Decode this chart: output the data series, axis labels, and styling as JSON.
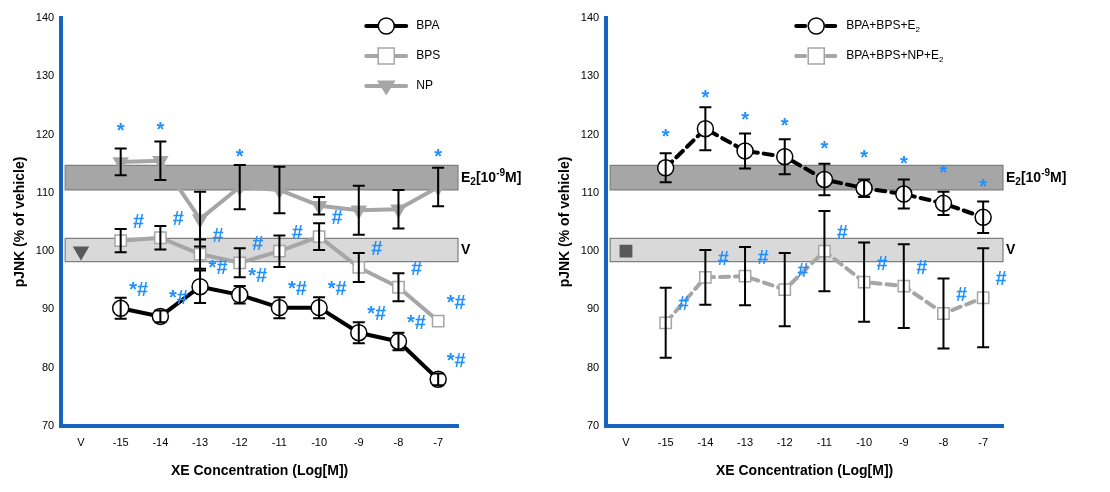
{
  "chart_data": [
    {
      "type": "line",
      "categories": [
        "V",
        "-15",
        "-14",
        "-13",
        "-12",
        "-11",
        "-10",
        "-9",
        "-8",
        "-7"
      ],
      "xlabel": "XE Concentration (Log[M])",
      "ylabel": "pJNK (% of vehicle)",
      "ylim": [
        70,
        140
      ],
      "yticks": [
        70,
        80,
        90,
        100,
        110,
        120,
        130,
        140
      ],
      "grid": false,
      "legend": "top right",
      "series": [
        {
          "name": "BPA",
          "color": "#000000",
          "marker": "circle",
          "line_style": "solid",
          "values": [
            null,
            90.2,
            88.8,
            93.9,
            92.5,
            90.3,
            90.3,
            86,
            84.5,
            78
          ],
          "errors": [
            null,
            1.8,
            1,
            2.8,
            1.5,
            1.8,
            1.8,
            1.8,
            1.5,
            1
          ]
        },
        {
          "name": "BPS",
          "color": "#a6a6a6",
          "marker": "square",
          "line_style": "solid",
          "values": [
            null,
            101.8,
            102.3,
            99.5,
            98,
            100,
            102.5,
            97.2,
            93.8,
            88
          ],
          "errors": [
            null,
            2,
            2,
            2.5,
            2.5,
            2.7,
            2.3,
            2.5,
            2.4,
            null
          ]
        },
        {
          "name": "NP",
          "color": "#a6a6a6",
          "marker": "triangle",
          "line_style": "solid",
          "values": [
            null,
            115.3,
            115.5,
            105.5,
            111,
            110.5,
            107.8,
            107,
            107.2,
            111
          ],
          "errors": [
            null,
            2.3,
            3.3,
            4.7,
            3.8,
            4,
            1.5,
            4.2,
            3.3,
            3.3
          ]
        },
        {
          "type": "scatter",
          "color": "#595959",
          "marker": "triangle",
          "x": [
            "V"
          ],
          "values": [
            100
          ]
        }
      ],
      "bands": [
        {
          "axis": "y",
          "from": 110.5,
          "to": 114.7,
          "label": "E$_{2}$[10$^{-9}$M]",
          "color": "#a6a6a6"
        },
        {
          "axis": "y",
          "from": 98.2,
          "to": 102.2,
          "label": "V",
          "color": "#d9d9d9"
        }
      ],
      "annotations": [
        {
          "text": "*",
          "x": "-15",
          "y": 115.3
        },
        {
          "text": "*",
          "x": "-14",
          "y": 115.5
        },
        {
          "text": "*",
          "x": "-12",
          "y": 111
        },
        {
          "text": "*",
          "x": "-7",
          "y": 111
        },
        {
          "text": "#",
          "x": "-15",
          "y": 101.8
        },
        {
          "text": "#",
          "x": "-14",
          "y": 102.3
        },
        {
          "text": "#",
          "x": "-13",
          "y": 99.5
        },
        {
          "text": "#",
          "x": "-12",
          "y": 98
        },
        {
          "text": "#",
          "x": "-11",
          "y": 100
        },
        {
          "text": "#",
          "x": "-10",
          "y": 102.5
        },
        {
          "text": "#",
          "x": "-9",
          "y": 97.2
        },
        {
          "text": "#",
          "x": "-8",
          "y": 93.8
        },
        {
          "text": "*#",
          "x": "-7",
          "y": 88
        },
        {
          "text": "*#",
          "x": "-15",
          "y": 90.2
        },
        {
          "text": "*#",
          "x": "-14",
          "y": 88.8
        },
        {
          "text": "*#",
          "x": "-13",
          "y": 93.9
        },
        {
          "text": "*#",
          "x": "-12",
          "y": 92.5
        },
        {
          "text": "*#",
          "x": "-11",
          "y": 90.3
        },
        {
          "text": "*#",
          "x": "-10",
          "y": 90.3
        },
        {
          "text": "*#",
          "x": "-9",
          "y": 86
        },
        {
          "text": "*#",
          "x": "-8",
          "y": 84.5
        },
        {
          "text": "*#",
          "x": "-7",
          "y": 78
        }
      ]
    },
    {
      "type": "line",
      "categories": [
        "V",
        "-15",
        "-14",
        "-13",
        "-12",
        "-11",
        "-10",
        "-9",
        "-8",
        "-7"
      ],
      "xlabel": "XE Concentration (Log[M])",
      "ylabel": "pJNK (% of vehicle)",
      "ylim": [
        70,
        140
      ],
      "yticks": [
        70,
        80,
        90,
        100,
        110,
        120,
        130,
        140
      ],
      "grid": false,
      "legend": "top right",
      "series": [
        {
          "name": "BPA+BPS+E$_{2}$",
          "color": "#000000",
          "marker": "circle",
          "line_style": "dashed",
          "values": [
            null,
            114.3,
            121,
            117.2,
            116.2,
            112.3,
            110.8,
            109.8,
            108.2,
            105.8
          ],
          "errors": [
            null,
            2.5,
            3.7,
            3,
            3,
            2.7,
            1.5,
            2.5,
            2,
            2.7
          ]
        },
        {
          "name": "BPA+BPS+NP+E$_{2}$",
          "color": "#a6a6a6",
          "marker": "square",
          "line_style": "dashed",
          "values": [
            null,
            87.7,
            95.5,
            95.7,
            93.4,
            100,
            94.7,
            94,
            89.3,
            92
          ],
          "errors": [
            null,
            6,
            4.7,
            5,
            6.3,
            6.9,
            6.8,
            7.2,
            6,
            8.5
          ]
        },
        {
          "type": "scatter",
          "color": "#595959",
          "marker": "square",
          "x": [
            "V"
          ],
          "values": [
            100
          ]
        }
      ],
      "bands": [
        {
          "axis": "y",
          "from": 110.5,
          "to": 114.7,
          "label": "E$_{2}$[10$^{-9}$M]",
          "color": "#a6a6a6"
        },
        {
          "axis": "y",
          "from": 98.2,
          "to": 102.2,
          "label": "V",
          "color": "#d9d9d9"
        }
      ],
      "annotations": [
        {
          "text": "*",
          "x": "-15",
          "y": 114.3
        },
        {
          "text": "*",
          "x": "-14",
          "y": 121
        },
        {
          "text": "*",
          "x": "-13",
          "y": 117.2
        },
        {
          "text": "*",
          "x": "-12",
          "y": 116.2
        },
        {
          "text": "*",
          "x": "-11",
          "y": 112.3
        },
        {
          "text": "*",
          "x": "-10",
          "y": 110.8
        },
        {
          "text": "*",
          "x": "-9",
          "y": 109.8
        },
        {
          "text": "*",
          "x": "-8",
          "y": 108.2
        },
        {
          "text": "*",
          "x": "-7",
          "y": 105.8
        },
        {
          "text": "#",
          "x": "-15",
          "y": 87.7
        },
        {
          "text": "#",
          "x": "-14",
          "y": 95.5
        },
        {
          "text": "#",
          "x": "-13",
          "y": 95.7
        },
        {
          "text": "#",
          "x": "-12",
          "y": 93.4
        },
        {
          "text": "#",
          "x": "-11",
          "y": 100
        },
        {
          "text": "#",
          "x": "-10",
          "y": 94.7
        },
        {
          "text": "#",
          "x": "-9",
          "y": 94
        },
        {
          "text": "#",
          "x": "-8",
          "y": 89.3
        },
        {
          "text": "#",
          "x": "-7",
          "y": 92
        }
      ]
    }
  ]
}
